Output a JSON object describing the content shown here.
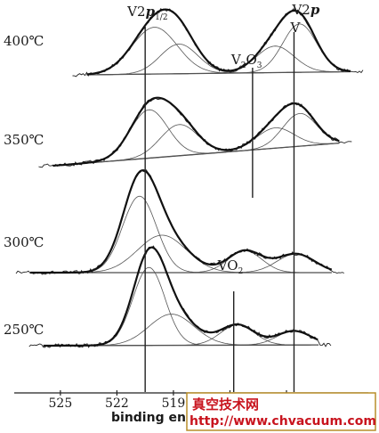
{
  "chart_data": {
    "type": "line",
    "title": "",
    "xlabel": "binding energy",
    "ylabel": "",
    "x_reversed": true,
    "xlim": [
      526.6,
      509.6
    ],
    "x_ticks": [
      525,
      522,
      519,
      516,
      513
    ],
    "x_tick_labels": [
      "525",
      "522",
      "519",
      "",
      "513"
    ],
    "grid": false,
    "legend": "none",
    "peak_labels": [
      {
        "key": "v2p12",
        "base": "V2",
        "italic": "p",
        "sub": "1/2",
        "x": 520.5
      },
      {
        "key": "v2o3",
        "base": "V",
        "sub1": "2",
        "mid": "O",
        "sub2": "3",
        "x": 514.8
      },
      {
        "key": "v2p",
        "base": "V2",
        "italic": "p",
        "line2": "V",
        "x": 512.6
      },
      {
        "key": "vo2",
        "base": "VO",
        "sub": "2",
        "x": 515.8
      }
    ],
    "series": [
      {
        "name": "400℃",
        "baseline": [
          [
            523.6,
            0
          ],
          [
            509.6,
            0.2
          ]
        ],
        "components": [
          {
            "center": 520.0,
            "height": 3.0,
            "width": 1.2
          },
          {
            "center": 518.7,
            "height": 1.9,
            "width": 1.0
          },
          {
            "center": 513.6,
            "height": 1.7,
            "width": 1.0
          },
          {
            "center": 512.3,
            "height": 3.1,
            "width": 0.9
          }
        ]
      },
      {
        "name": "350℃",
        "baseline": [
          [
            525.4,
            0
          ],
          [
            510.2,
            1.45
          ]
        ],
        "components": [
          {
            "center": 520.3,
            "height": 3.1,
            "width": 1.0
          },
          {
            "center": 518.7,
            "height": 2.0,
            "width": 1.0
          },
          {
            "center": 513.6,
            "height": 1.3,
            "width": 1.0
          },
          {
            "center": 512.3,
            "height": 2.1,
            "width": 0.9
          }
        ]
      },
      {
        "name": "300℃",
        "baseline": [
          [
            526.6,
            0
          ],
          [
            510.6,
            0.0
          ]
        ],
        "components": [
          {
            "center": 520.8,
            "height": 4.9,
            "width": 0.9
          },
          {
            "center": 519.6,
            "height": 2.4,
            "width": 1.3
          },
          {
            "center": 515.2,
            "height": 1.4,
            "width": 0.9
          },
          {
            "center": 512.5,
            "height": 1.2,
            "width": 1.0
          }
        ]
      },
      {
        "name": "250℃",
        "baseline": [
          [
            525.9,
            0
          ],
          [
            511.3,
            0.05
          ]
        ],
        "components": [
          {
            "center": 520.3,
            "height": 5.0,
            "width": 0.85
          },
          {
            "center": 519.1,
            "height": 2.0,
            "width": 1.2
          },
          {
            "center": 515.6,
            "height": 1.3,
            "width": 0.9
          },
          {
            "center": 512.6,
            "height": 0.9,
            "width": 0.9
          }
        ]
      }
    ],
    "reference_lines": [
      520.5,
      514.8,
      512.6,
      515.8
    ]
  },
  "watermark": {
    "line1": "真空技术网",
    "line2": "http://www.chvacuum.com"
  }
}
